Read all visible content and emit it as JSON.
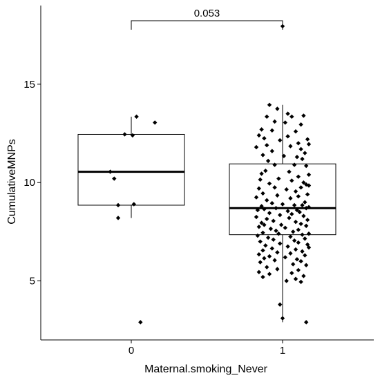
{
  "chart_data": {
    "type": "box",
    "xlabel": "Maternal.smoking_Never",
    "ylabel": "CumulativeMNPs",
    "categories": [
      "0",
      "1"
    ],
    "yticks": [
      5,
      10,
      15
    ],
    "ylim": [
      2.0,
      19.0
    ],
    "grid": false,
    "boxes": [
      {
        "category": "0",
        "q1": 8.85,
        "median": 10.55,
        "q3": 12.45,
        "whisker_low": 8.2,
        "whisker_high": 13.35
      },
      {
        "category": "1",
        "q1": 7.35,
        "median": 8.7,
        "q3": 10.95,
        "whisker_low": 2.9,
        "whisker_high": 13.95
      }
    ],
    "points": {
      "0": [
        [
          -0.05,
          12.45
        ],
        [
          0.01,
          12.4
        ],
        [
          0.04,
          13.35
        ],
        [
          0.18,
          13.05
        ],
        [
          -0.16,
          10.55
        ],
        [
          -0.13,
          10.2
        ],
        [
          0.02,
          8.9
        ],
        [
          -0.1,
          8.85
        ],
        [
          -0.1,
          8.2
        ],
        [
          0.07,
          2.9
        ]
      ],
      "1": [
        [
          0.0,
          17.95
        ],
        [
          -0.1,
          13.95
        ],
        [
          -0.04,
          13.75
        ],
        [
          0.04,
          13.5
        ],
        [
          0.16,
          13.4
        ],
        [
          -0.12,
          13.35
        ],
        [
          0.07,
          13.35
        ],
        [
          -0.06,
          13.1
        ],
        [
          0.02,
          13.05
        ],
        [
          0.14,
          12.95
        ],
        [
          -0.16,
          12.7
        ],
        [
          -0.08,
          12.65
        ],
        [
          0.1,
          12.6
        ],
        [
          -0.18,
          12.4
        ],
        [
          0.04,
          12.35
        ],
        [
          -0.14,
          12.25
        ],
        [
          0.19,
          12.2
        ],
        [
          -0.02,
          12.15
        ],
        [
          0.12,
          12.0
        ],
        [
          0.2,
          11.95
        ],
        [
          -0.12,
          11.9
        ],
        [
          0.06,
          11.85
        ],
        [
          -0.2,
          11.8
        ],
        [
          0.14,
          11.7
        ],
        [
          -0.08,
          11.6
        ],
        [
          0.17,
          11.5
        ],
        [
          -0.15,
          11.4
        ],
        [
          0.01,
          11.35
        ],
        [
          0.11,
          11.3
        ],
        [
          0.15,
          11.2
        ],
        [
          -0.11,
          11.1
        ],
        [
          -0.06,
          10.9
        ],
        [
          0.09,
          10.9
        ],
        [
          0.18,
          10.85
        ],
        [
          -0.13,
          10.6
        ],
        [
          0.05,
          10.55
        ],
        [
          -0.16,
          10.45
        ],
        [
          0.2,
          10.4
        ],
        [
          0.12,
          10.3
        ],
        [
          -0.03,
          10.2
        ],
        [
          -0.17,
          10.15
        ],
        [
          0.07,
          10.1
        ],
        [
          0.16,
          10.0
        ],
        [
          -0.1,
          9.95
        ],
        [
          0.18,
          9.9
        ],
        [
          0.2,
          9.85
        ],
        [
          -0.06,
          9.75
        ],
        [
          0.14,
          9.75
        ],
        [
          -0.18,
          9.7
        ],
        [
          0.03,
          9.65
        ],
        [
          0.1,
          9.55
        ],
        [
          -0.15,
          9.45
        ],
        [
          0.19,
          9.4
        ],
        [
          -0.04,
          9.35
        ],
        [
          0.12,
          9.3
        ],
        [
          -0.2,
          9.25
        ],
        [
          0.06,
          9.2
        ],
        [
          -0.12,
          9.1
        ],
        [
          0.17,
          9.0
        ],
        [
          -0.08,
          8.95
        ],
        [
          0.0,
          8.9
        ],
        [
          0.09,
          8.85
        ],
        [
          0.15,
          8.85
        ],
        [
          -0.16,
          8.8
        ],
        [
          0.2,
          8.75
        ],
        [
          -0.05,
          8.7
        ],
        [
          0.18,
          8.7
        ],
        [
          -0.14,
          8.65
        ],
        [
          0.11,
          8.6
        ],
        [
          -0.19,
          8.6
        ],
        [
          0.04,
          8.55
        ],
        [
          0.13,
          8.5
        ],
        [
          -0.1,
          8.45
        ],
        [
          0.07,
          8.4
        ],
        [
          -0.02,
          8.35
        ],
        [
          0.16,
          8.3
        ],
        [
          -0.2,
          8.25
        ],
        [
          0.05,
          8.2
        ],
        [
          -0.12,
          8.15
        ],
        [
          0.19,
          8.1
        ],
        [
          -0.07,
          8.05
        ],
        [
          0.1,
          8.0
        ],
        [
          -0.16,
          7.95
        ],
        [
          0.14,
          7.9
        ],
        [
          -0.01,
          7.85
        ],
        [
          -0.14,
          7.85
        ],
        [
          0.18,
          7.8
        ],
        [
          -0.18,
          7.75
        ],
        [
          0.02,
          7.7
        ],
        [
          -0.09,
          7.65
        ],
        [
          0.12,
          7.6
        ],
        [
          -0.05,
          7.55
        ],
        [
          0.08,
          7.5
        ],
        [
          -0.15,
          7.45
        ],
        [
          0.2,
          7.4
        ],
        [
          -0.03,
          7.4
        ],
        [
          0.15,
          7.35
        ],
        [
          -0.19,
          7.3
        ],
        [
          0.06,
          7.25
        ],
        [
          -0.11,
          7.2
        ],
        [
          0.17,
          7.15
        ],
        [
          -0.07,
          7.1
        ],
        [
          0.09,
          7.05
        ],
        [
          -0.17,
          7.0
        ],
        [
          0.12,
          6.95
        ],
        [
          -0.02,
          6.9
        ],
        [
          0.19,
          6.85
        ],
        [
          -0.13,
          6.8
        ],
        [
          0.04,
          6.75
        ],
        [
          0.2,
          6.7
        ],
        [
          -0.08,
          6.65
        ],
        [
          0.1,
          6.6
        ],
        [
          -0.15,
          6.55
        ],
        [
          0.15,
          6.5
        ],
        [
          -0.04,
          6.45
        ],
        [
          0.06,
          6.4
        ],
        [
          -0.18,
          6.35
        ],
        [
          0.17,
          6.3
        ],
        [
          -0.1,
          6.25
        ],
        [
          0.02,
          6.2
        ],
        [
          -0.14,
          6.15
        ],
        [
          0.11,
          6.1
        ],
        [
          -0.06,
          6.05
        ],
        [
          0.14,
          6.0
        ],
        [
          -0.17,
          5.95
        ],
        [
          0.08,
          5.85
        ],
        [
          0.18,
          5.8
        ],
        [
          -0.12,
          5.7
        ],
        [
          -0.04,
          5.6
        ],
        [
          0.12,
          5.55
        ],
        [
          -0.18,
          5.45
        ],
        [
          0.07,
          5.4
        ],
        [
          -0.1,
          5.35
        ],
        [
          0.16,
          5.25
        ],
        [
          -0.15,
          5.2
        ],
        [
          0.1,
          5.1
        ],
        [
          0.03,
          5.0
        ],
        [
          0.14,
          4.95
        ],
        [
          -0.02,
          3.8
        ],
        [
          0.0,
          3.1
        ],
        [
          0.18,
          2.9
        ]
      ]
    },
    "significance": {
      "from": "0",
      "to": "1",
      "label": "0.053"
    }
  }
}
